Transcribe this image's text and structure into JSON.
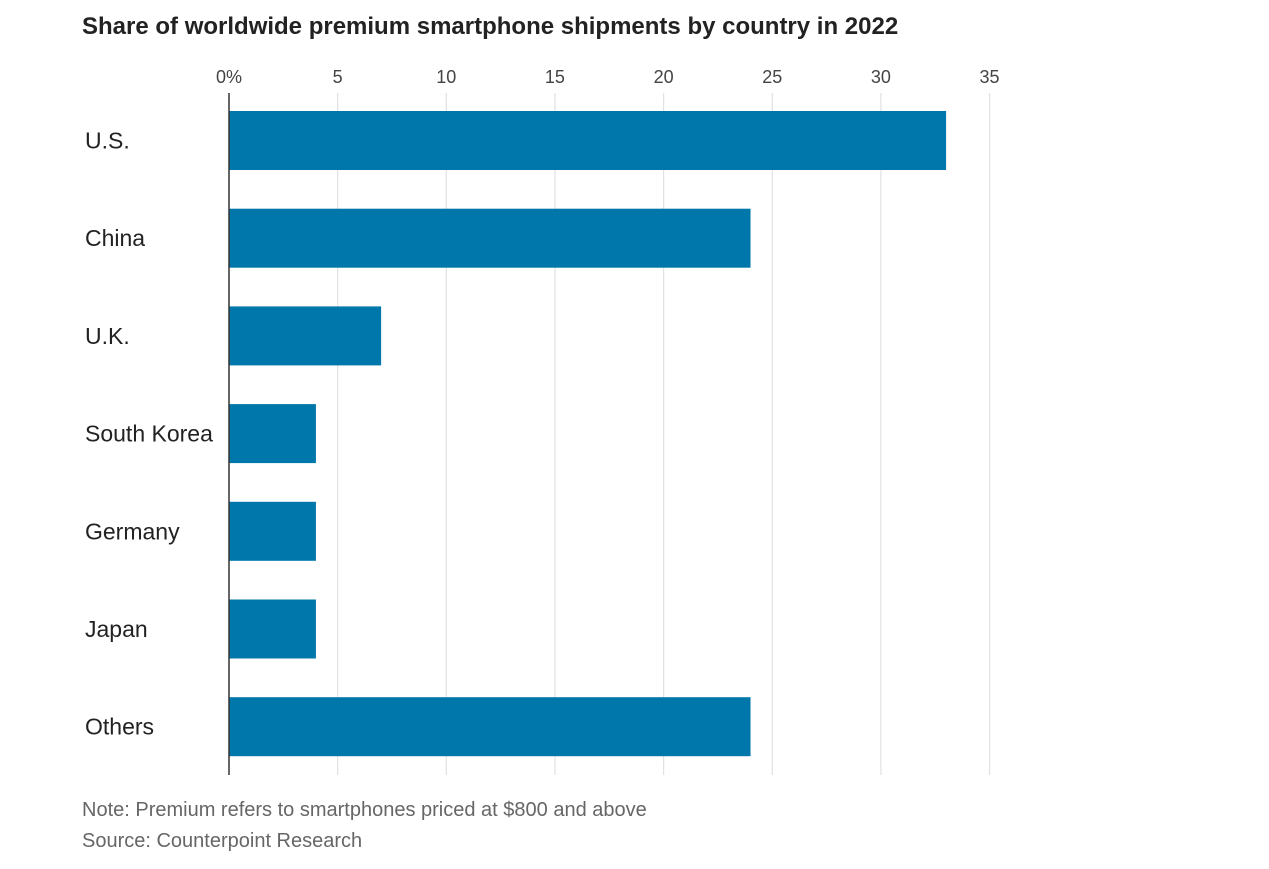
{
  "chart_data": {
    "type": "bar",
    "orientation": "horizontal",
    "title": "Share of worldwide premium smartphone shipments by country in 2022",
    "categories": [
      "U.S.",
      "China",
      "U.K.",
      "South Korea",
      "Germany",
      "Japan",
      "Others"
    ],
    "values": [
      33,
      24,
      7,
      4,
      4,
      4,
      24
    ],
    "x_ticks": [
      0,
      5,
      10,
      15,
      20,
      25,
      30,
      35
    ],
    "x_tick_labels": [
      "0%",
      "5",
      "10",
      "15",
      "20",
      "25",
      "30",
      "35"
    ],
    "xlim": [
      0,
      35
    ],
    "xlabel": "",
    "ylabel": "",
    "grid": true,
    "colors": {
      "bar": "#0077aa",
      "grid": "#e1e1e1",
      "axis": "#333333"
    }
  },
  "footer": {
    "note": "Note: Premium refers to smartphones priced at $800 and above",
    "source": "Source: Counterpoint Research"
  }
}
